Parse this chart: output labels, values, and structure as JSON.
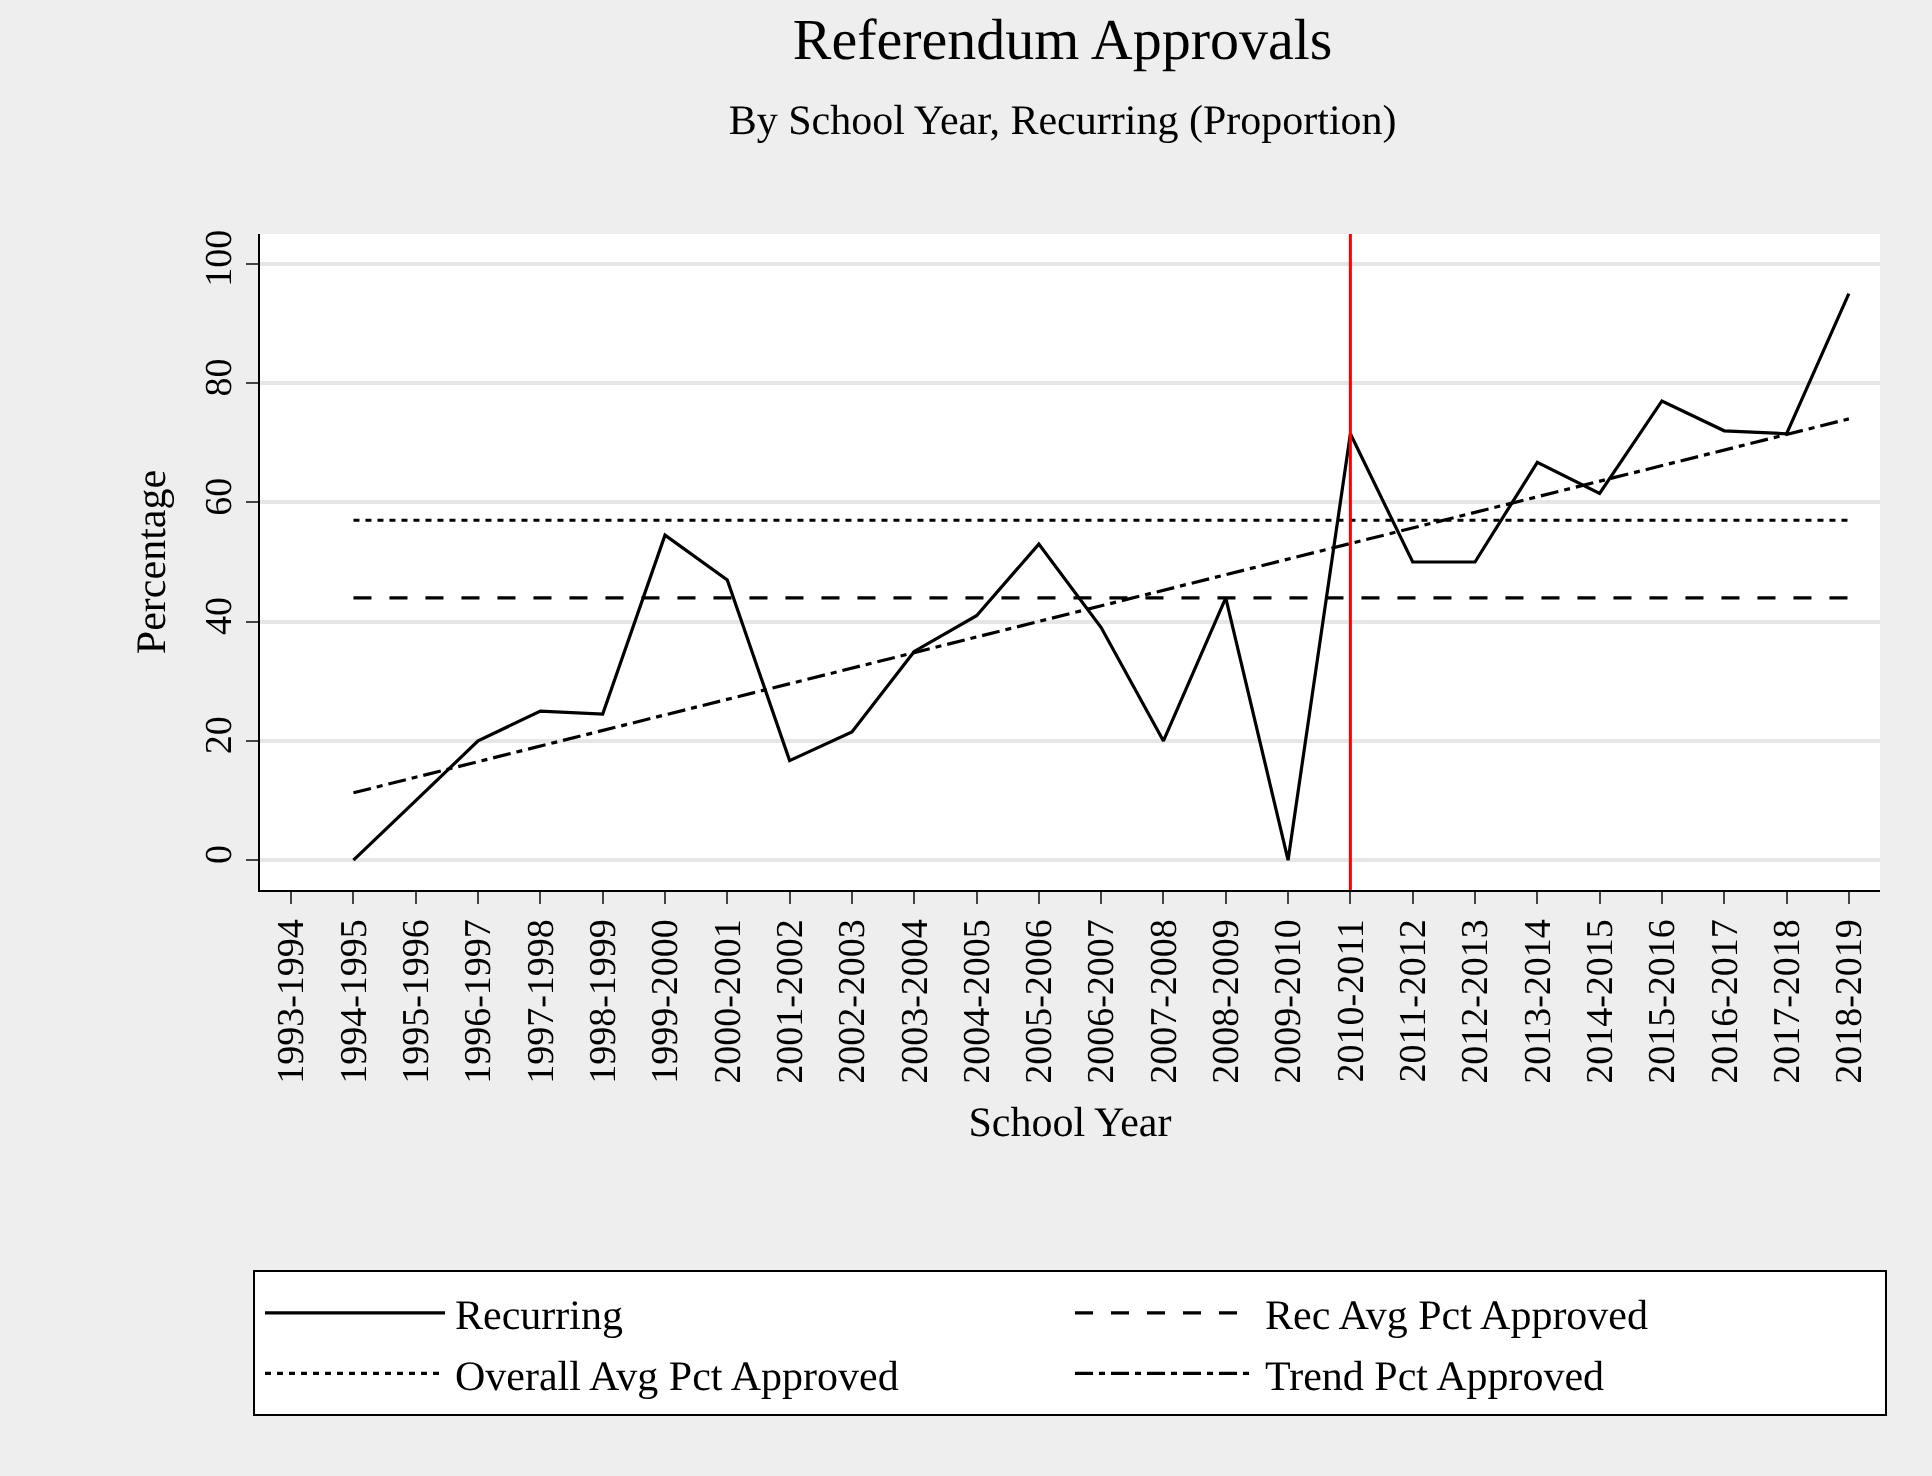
{
  "chart_data": {
    "type": "line",
    "title": "Referendum Approvals",
    "subtitle": "By School Year, Recurring (Proportion)",
    "xlabel": "School Year",
    "ylabel": "Percentage",
    "categories": [
      "1993-1994",
      "1994-1995",
      "1995-1996",
      "1996-1997",
      "1997-1998",
      "1998-1999",
      "1999-2000",
      "2000-2001",
      "2001-2002",
      "2002-2003",
      "2003-2004",
      "2004-2005",
      "2005-2006",
      "2006-2007",
      "2007-2008",
      "2008-2009",
      "2009-2010",
      "2010-2011",
      "2011-2012",
      "2012-2013",
      "2013-2014",
      "2014-2015",
      "2015-2016",
      "2016-2017",
      "2017-2018",
      "2018-2019"
    ],
    "series": [
      {
        "name": "Recurring",
        "color": "#000000",
        "line_style": "solid",
        "values": [
          null,
          0,
          10,
          20,
          25,
          24.5,
          54.5,
          47,
          16.7,
          21.5,
          35,
          41,
          53,
          39,
          20,
          44,
          0,
          71.5,
          50,
          50,
          66.7,
          61.5,
          77,
          72,
          71.5,
          95
        ]
      },
      {
        "name": "Rec Avg Pct Approved",
        "color": "#000000",
        "line_style": "dashed",
        "x": [
          "1994-1995",
          "2018-2019"
        ],
        "values": [
          44,
          44
        ]
      },
      {
        "name": "Overall Avg Pct Approved",
        "color": "#000000",
        "line_style": "dotted",
        "x": [
          "1994-1995",
          "2018-2019"
        ],
        "values": [
          57,
          57
        ]
      },
      {
        "name": "Trend Pct Approved",
        "color": "#000000",
        "line_style": "dashdot",
        "x": [
          "1994-1995",
          "2018-2019"
        ],
        "values": [
          11.3,
          74
        ]
      }
    ],
    "ylim": [
      -5,
      105
    ],
    "yticks": [
      0,
      20,
      40,
      60,
      80,
      100
    ],
    "grid": "y",
    "legend": "bottom",
    "ref_lines": [
      {
        "axis": "x",
        "value": "2010-2011",
        "color": "#ff0000"
      }
    ]
  }
}
